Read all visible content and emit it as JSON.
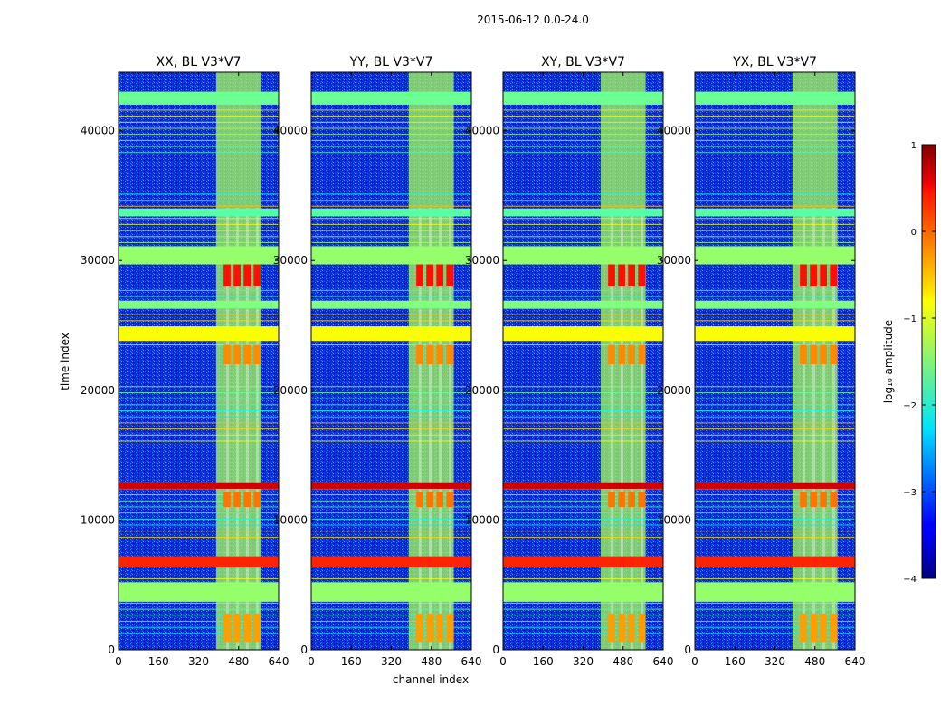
{
  "chart_data": {
    "type": "heatmap",
    "title": "2015-06-12 0.0-24.0",
    "xlabel": "channel index",
    "ylabel": "time index",
    "xlim": [
      0,
      640
    ],
    "ylim": [
      0,
      44500
    ],
    "x_ticks": [
      "0",
      "160",
      "320",
      "480",
      "640"
    ],
    "y_ticks": [
      "0",
      "10000",
      "20000",
      "30000",
      "40000"
    ],
    "x_tick_values": [
      0,
      160,
      320,
      480,
      640
    ],
    "y_tick_values": [
      0,
      10000,
      20000,
      30000,
      40000
    ],
    "colormap": "jet",
    "colorbar": {
      "label": "log₁₀ amplitude",
      "range": [
        -4,
        1
      ],
      "ticks": [
        "1",
        "0",
        "−1",
        "−2",
        "−3",
        "−4"
      ],
      "tick_values": [
        1,
        0,
        -1,
        -2,
        -3,
        -4
      ]
    },
    "panels": [
      {
        "title": "XX, BL V3*V7"
      },
      {
        "title": "YY, BL V3*V7"
      },
      {
        "title": "XY, BL V3*V7"
      },
      {
        "title": "YX, BL V3*V7"
      }
    ],
    "horizontal_bands": [
      {
        "y_range": [
          3700,
          5200
        ],
        "log_amplitude": -1.4
      },
      {
        "y_range": [
          6400,
          7200
        ],
        "log_amplitude": 0.2
      },
      {
        "y_range": [
          12400,
          12900
        ],
        "log_amplitude": 0.6
      },
      {
        "y_range": [
          23800,
          24900
        ],
        "log_amplitude": -0.9
      },
      {
        "y_range": [
          26300,
          26900
        ],
        "log_amplitude": -1.5
      },
      {
        "y_range": [
          29700,
          31100
        ],
        "log_amplitude": -1.4
      },
      {
        "y_range": [
          33400,
          34000
        ],
        "log_amplitude": -1.7
      },
      {
        "y_range": [
          42000,
          43000
        ],
        "log_amplitude": -1.6
      }
    ],
    "rfi_channel_block": {
      "x_range": [
        390,
        570
      ],
      "log_amplitude": -1.3
    }
  }
}
